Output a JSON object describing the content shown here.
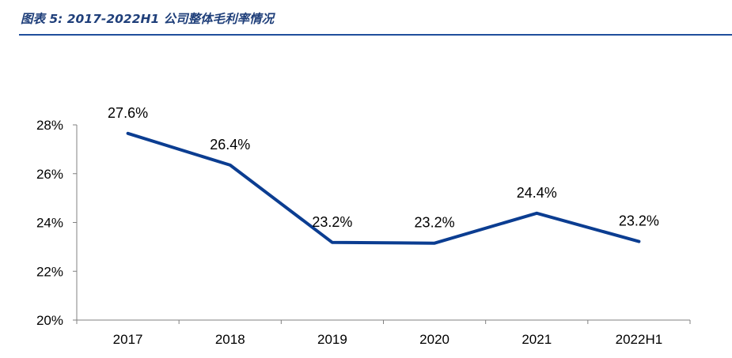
{
  "header": {
    "figure_title": "图表 5:  2017-2022H1 公司整体毛利率情况"
  },
  "colors": {
    "title": "#1f3f7a",
    "rule": "#1f4e9c",
    "series_line": "#0b3d91",
    "axis": "#808080"
  },
  "chart_data": {
    "type": "line",
    "title": "2017-2022H1 公司整体毛利率情况",
    "categories": [
      "2017",
      "2018",
      "2019",
      "2020",
      "2021",
      "2022H1"
    ],
    "series": [
      {
        "name": "整体毛利率",
        "values": [
          27.65,
          26.35,
          23.18,
          23.15,
          24.38,
          23.22
        ],
        "labels": [
          "27.6%",
          "26.4%",
          "23.2%",
          "23.2%",
          "24.4%",
          "23.2%"
        ]
      }
    ],
    "yticks": [
      20,
      22,
      24,
      26,
      28
    ],
    "ytick_labels": [
      "20%",
      "22%",
      "24%",
      "26%",
      "28%"
    ],
    "ylim": [
      20,
      28
    ],
    "xlabel": "",
    "ylabel": "",
    "grid": false,
    "legend": "none"
  }
}
